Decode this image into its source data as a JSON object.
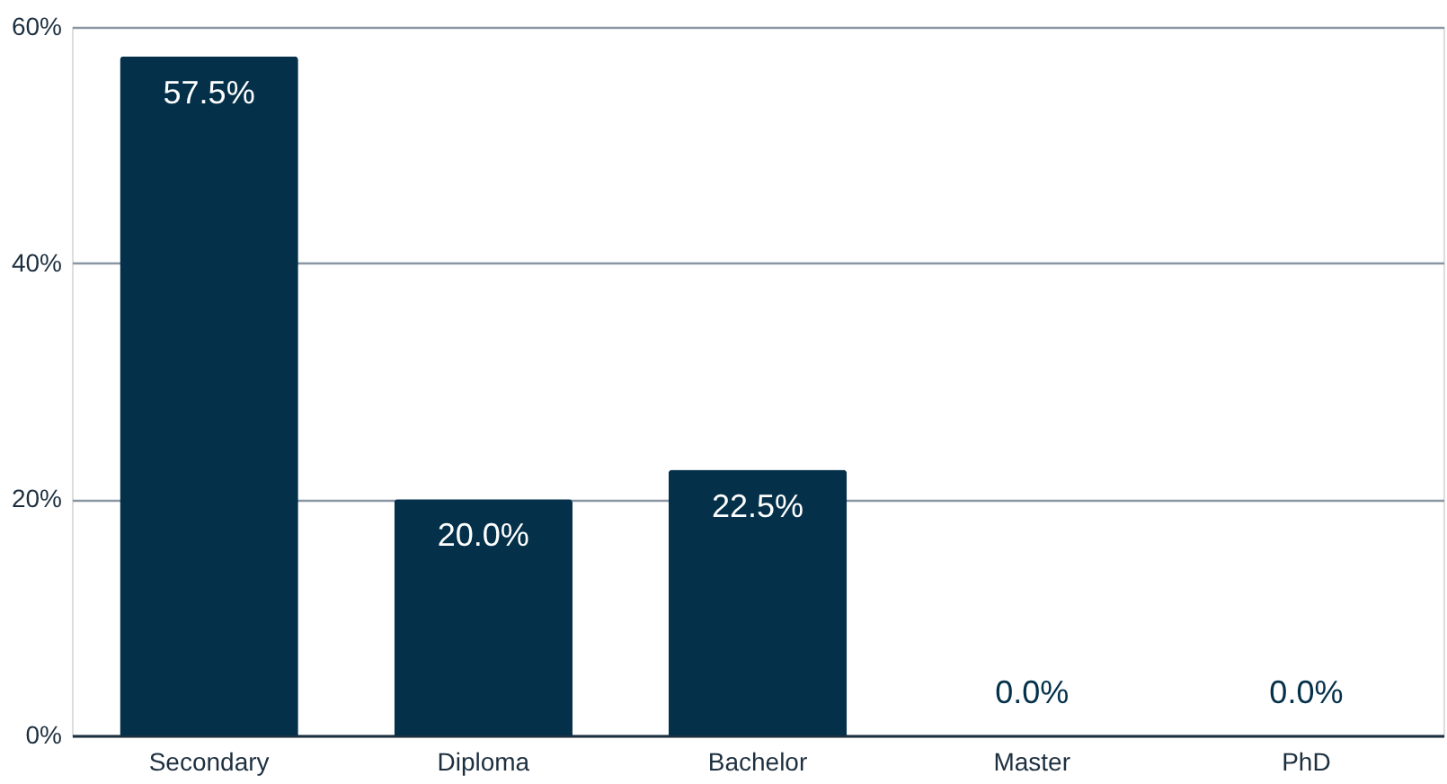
{
  "chart_data": {
    "type": "bar",
    "categories": [
      "Secondary",
      "Diploma",
      "Bachelor",
      "Master",
      "PhD"
    ],
    "values": [
      57.5,
      20.0,
      22.5,
      0.0,
      0.0
    ],
    "value_labels": [
      "57.5%",
      "20.0%",
      "22.5%",
      "0.0%",
      "0.0%"
    ],
    "color": "#04304a",
    "ylim": [
      0,
      60
    ],
    "yticks": [
      {
        "value": 0,
        "label": "0%"
      },
      {
        "value": 20,
        "label": "20%"
      },
      {
        "value": 40,
        "label": "40%"
      },
      {
        "value": 60,
        "label": "60%"
      }
    ],
    "grid": "y"
  }
}
